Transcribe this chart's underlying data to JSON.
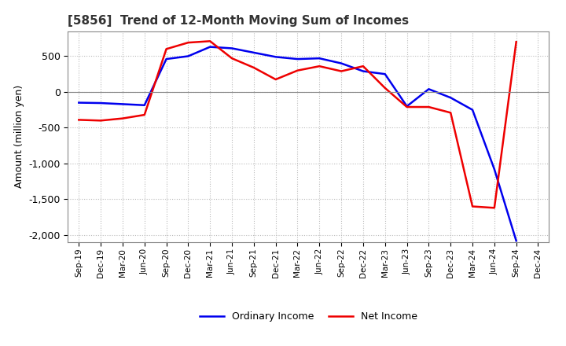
{
  "title": "[5856]  Trend of 12-Month Moving Sum of Incomes",
  "ylabel": "Amount (million yen)",
  "ylim": [
    -2100,
    850
  ],
  "yticks": [
    -2000,
    -1500,
    -1000,
    -500,
    0,
    500
  ],
  "background_color": "#ffffff",
  "grid_color": "#aaaaaa",
  "ordinary_income_color": "#0000ee",
  "net_income_color": "#ee0000",
  "line_width": 1.8,
  "x_labels": [
    "Sep-19",
    "Dec-19",
    "Mar-20",
    "Jun-20",
    "Sep-20",
    "Dec-20",
    "Mar-21",
    "Jun-21",
    "Sep-21",
    "Dec-21",
    "Mar-22",
    "Jun-22",
    "Sep-22",
    "Dec-22",
    "Mar-23",
    "Jun-23",
    "Sep-23",
    "Dec-23",
    "Mar-24",
    "Jun-24",
    "Sep-24",
    "Dec-24"
  ],
  "ordinary_income": [
    -150,
    -155,
    -170,
    -185,
    460,
    500,
    630,
    610,
    550,
    490,
    460,
    470,
    400,
    290,
    250,
    -200,
    40,
    -80,
    -250,
    -1080,
    -2080,
    null
  ],
  "net_income": [
    -390,
    -400,
    -370,
    -320,
    600,
    690,
    710,
    470,
    340,
    175,
    300,
    360,
    290,
    360,
    55,
    -210,
    -210,
    -290,
    -1600,
    -1620,
    700,
    null
  ],
  "legend_labels": [
    "Ordinary Income",
    "Net Income"
  ]
}
